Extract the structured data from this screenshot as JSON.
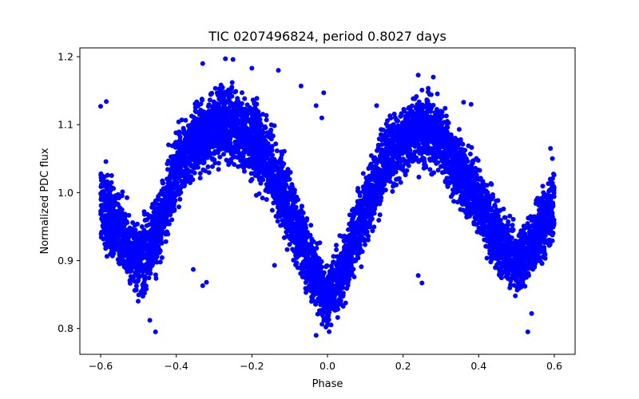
{
  "chart_data": {
    "type": "scatter",
    "title": "TIC 0207496824, period 0.8027 days",
    "xlabel": "Phase",
    "ylabel": "Normalized PDC flux",
    "xlim": [
      -0.655,
      0.655
    ],
    "ylim": [
      0.762,
      1.213
    ],
    "xticks": [
      -0.6,
      -0.4,
      -0.2,
      0.0,
      0.2,
      0.4,
      0.6
    ],
    "xtick_labels": [
      "−0.6",
      "−0.4",
      "−0.2",
      "0.0",
      "0.2",
      "0.4",
      "0.6"
    ],
    "yticks": [
      0.8,
      0.9,
      1.0,
      1.1,
      1.2
    ],
    "ytick_labels": [
      "0.8",
      "0.9",
      "1.0",
      "1.1",
      "1.2"
    ],
    "grid": false,
    "legend": "none",
    "marker_color": "#0000ff",
    "series": [
      {
        "envelope": [
          {
            "x": -0.6,
            "low": 0.91,
            "high": 1.07
          },
          {
            "x": -0.55,
            "low": 0.86,
            "high": 1.02
          },
          {
            "x": -0.5,
            "low": 0.82,
            "high": 0.97
          },
          {
            "x": -0.45,
            "low": 0.86,
            "high": 1.02
          },
          {
            "x": -0.4,
            "low": 0.95,
            "high": 1.11
          },
          {
            "x": -0.35,
            "low": 1.0,
            "high": 1.15
          },
          {
            "x": -0.3,
            "low": 1.02,
            "high": 1.17
          },
          {
            "x": -0.25,
            "low": 1.02,
            "high": 1.18
          },
          {
            "x": -0.2,
            "low": 1.0,
            "high": 1.16
          },
          {
            "x": -0.15,
            "low": 0.96,
            "high": 1.12
          },
          {
            "x": -0.1,
            "low": 0.9,
            "high": 1.05
          },
          {
            "x": -0.05,
            "low": 0.83,
            "high": 0.97
          },
          {
            "x": 0.0,
            "low": 0.78,
            "high": 0.9
          },
          {
            "x": 0.05,
            "low": 0.83,
            "high": 0.97
          },
          {
            "x": 0.1,
            "low": 0.9,
            "high": 1.05
          },
          {
            "x": 0.15,
            "low": 0.97,
            "high": 1.12
          },
          {
            "x": 0.2,
            "low": 1.01,
            "high": 1.15
          },
          {
            "x": 0.25,
            "low": 1.02,
            "high": 1.17
          },
          {
            "x": 0.3,
            "low": 1.0,
            "high": 1.15
          },
          {
            "x": 0.35,
            "low": 0.96,
            "high": 1.11
          },
          {
            "x": 0.4,
            "low": 0.92,
            "high": 1.06
          },
          {
            "x": 0.45,
            "low": 0.86,
            "high": 1.01
          },
          {
            "x": 0.5,
            "low": 0.83,
            "high": 0.96
          },
          {
            "x": 0.55,
            "low": 0.86,
            "high": 1.0
          },
          {
            "x": 0.6,
            "low": 0.9,
            "high": 1.06
          }
        ],
        "outliers": [
          {
            "x": -0.6,
            "y": 1.127
          },
          {
            "x": -0.585,
            "y": 1.134
          },
          {
            "x": -0.33,
            "y": 1.19
          },
          {
            "x": -0.27,
            "y": 1.197
          },
          {
            "x": -0.25,
            "y": 1.196
          },
          {
            "x": -0.2,
            "y": 1.183
          },
          {
            "x": -0.13,
            "y": 1.18
          },
          {
            "x": -0.07,
            "y": 1.157
          },
          {
            "x": -0.32,
            "y": 0.868
          },
          {
            "x": -0.33,
            "y": 0.863
          },
          {
            "x": -0.355,
            "y": 0.887
          },
          {
            "x": -0.455,
            "y": 0.795
          },
          {
            "x": -0.47,
            "y": 0.812
          },
          {
            "x": -0.03,
            "y": 0.79
          },
          {
            "x": -0.01,
            "y": 1.147
          },
          {
            "x": -0.03,
            "y": 1.128
          },
          {
            "x": -0.015,
            "y": 1.11
          },
          {
            "x": 0.24,
            "y": 1.173
          },
          {
            "x": 0.28,
            "y": 1.17
          },
          {
            "x": 0.25,
            "y": 0.867
          },
          {
            "x": 0.24,
            "y": 0.878
          },
          {
            "x": 0.36,
            "y": 1.133
          },
          {
            "x": 0.38,
            "y": 1.13
          },
          {
            "x": 0.54,
            "y": 0.822
          },
          {
            "x": 0.53,
            "y": 0.795
          },
          {
            "x": 0.59,
            "y": 1.065
          },
          {
            "x": 0.595,
            "y": 1.05
          },
          {
            "x": -0.14,
            "y": 0.893
          },
          {
            "x": 0.13,
            "y": 1.128
          }
        ]
      }
    ]
  }
}
